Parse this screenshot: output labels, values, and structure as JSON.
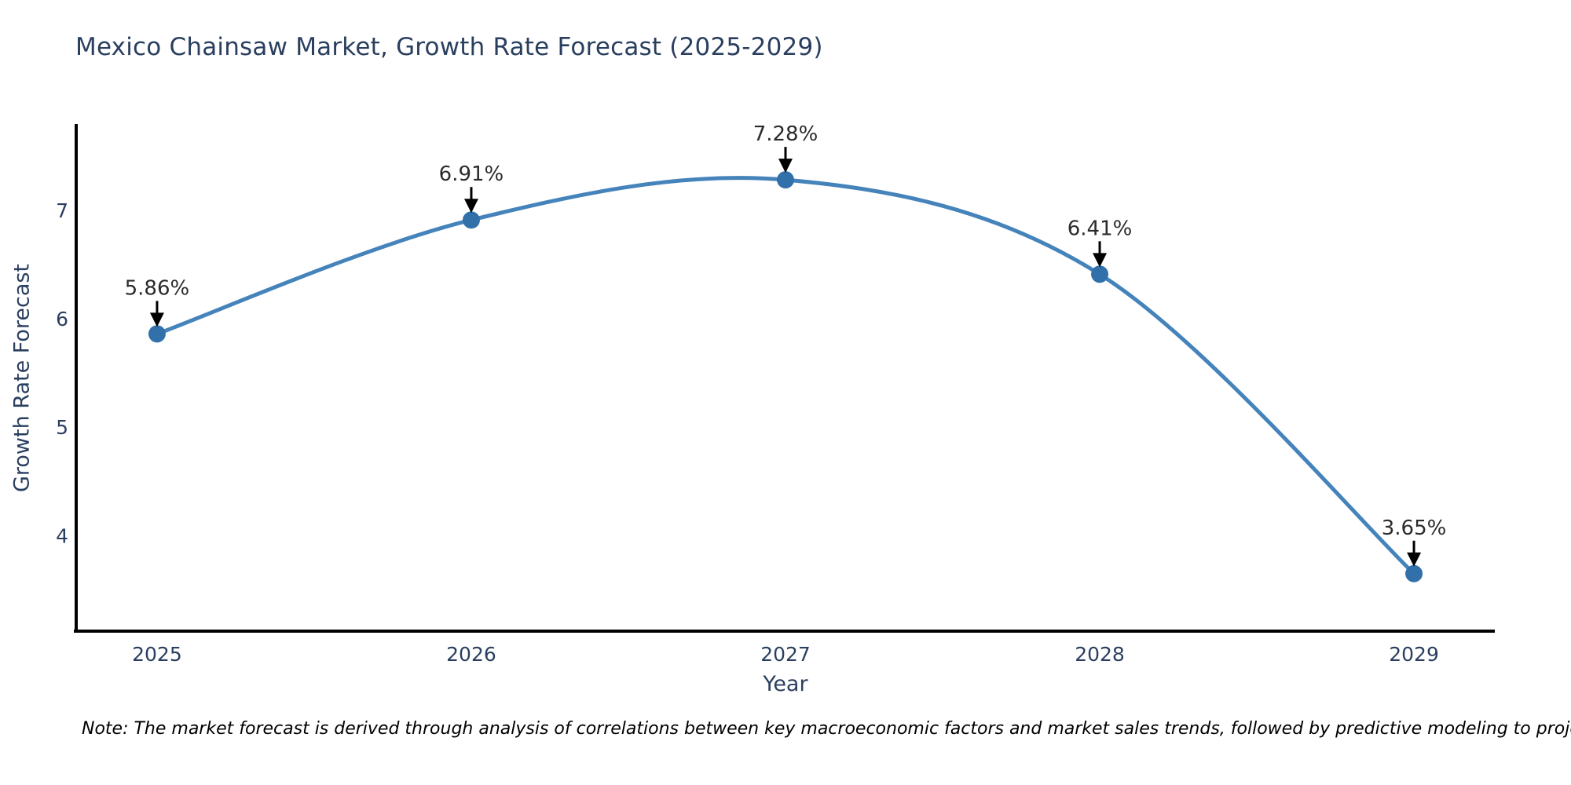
{
  "chart_data": {
    "type": "line",
    "title": "Mexico Chainsaw Market, Growth Rate Forecast (2025-2029)",
    "xlabel": "Year",
    "ylabel": "Growth Rate Forecast",
    "categories": [
      "2025",
      "2026",
      "2027",
      "2028",
      "2029"
    ],
    "values": [
      5.86,
      6.91,
      7.28,
      6.41,
      3.65
    ],
    "point_labels": [
      "5.86%",
      "6.91%",
      "7.28%",
      "6.41%",
      "3.65%"
    ],
    "yticks": [
      4,
      5,
      6,
      7
    ],
    "ylim": [
      3.12,
      7.78
    ],
    "grid": false,
    "legend": "none",
    "line_shape": "spline",
    "annotation_style": "percent label above each point with black arrow to marker",
    "colors": {
      "line": "#4583bb",
      "marker": "#3170a8",
      "arrow": "#000000",
      "axis": "#000000",
      "title_text": "#2a3f5f",
      "tick_text": "#2a3f5f",
      "annotation_text": "#2b2b2b",
      "background": "#ffffff"
    }
  },
  "note": {
    "text": "Note: The market forecast is derived through analysis of correlations between key macroeconomic factors and market sales trends, followed by predictive modeling to project future sales."
  }
}
